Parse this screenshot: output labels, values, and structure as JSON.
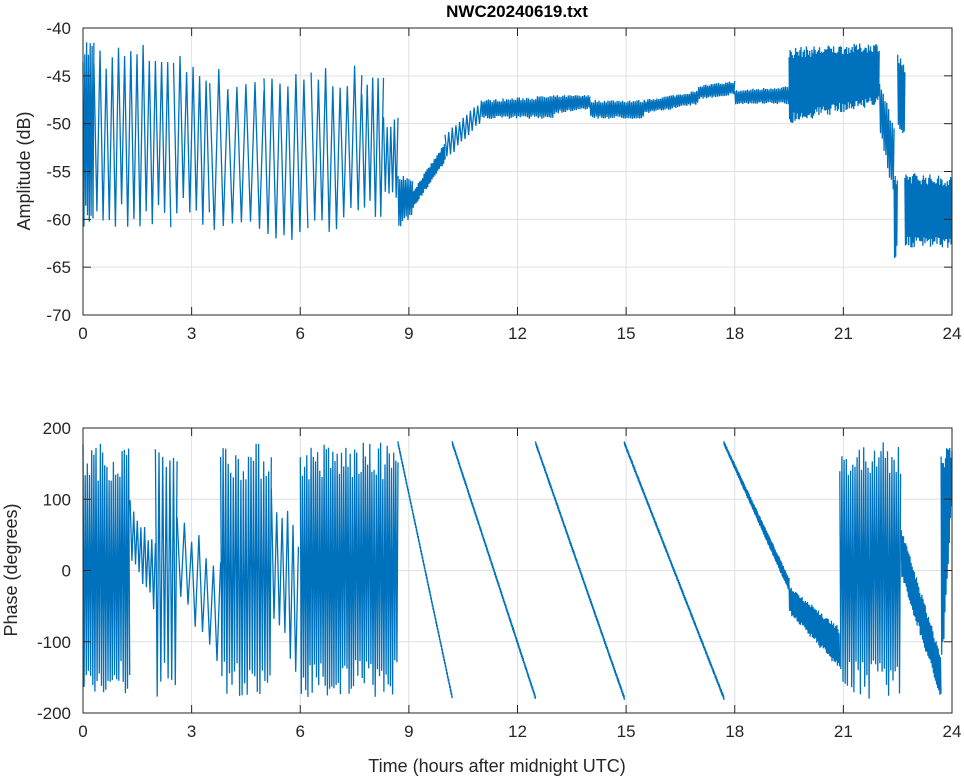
{
  "chart_data": [
    {
      "type": "line",
      "title": "NWC20240619.txt",
      "xlabel": "",
      "ylabel": "Amplitude (dB)",
      "xlim": [
        0,
        24
      ],
      "ylim": [
        -70,
        -40
      ],
      "xticks": [
        "0",
        "3",
        "6",
        "9",
        "12",
        "15",
        "18",
        "21",
        "24"
      ],
      "yticks": [
        "-40",
        "-45",
        "-50",
        "-55",
        "-60",
        "-65",
        "-70"
      ],
      "grid": true,
      "color": "#0072BD",
      "segments_note": "envelope segments [t_start_h, t_end_h, low_start, high_start, low_end, high_end, oscillation_period_h]",
      "segments": [
        [
          0,
          0.3,
          -61,
          -40.5,
          -61,
          -41,
          0.05
        ],
        [
          0.3,
          2.5,
          -61,
          -41.5,
          -61,
          -41.5,
          0.17
        ],
        [
          2.5,
          3.5,
          -60,
          -42.5,
          -61,
          -43,
          0.18
        ],
        [
          3.5,
          5.0,
          -62,
          -44,
          -62,
          -44.5,
          0.25
        ],
        [
          5.0,
          6.3,
          -63,
          -45,
          -63,
          -44.5,
          0.22
        ],
        [
          6.3,
          7.7,
          -62,
          -43.5,
          -61,
          -44,
          0.2
        ],
        [
          7.7,
          8.3,
          -60,
          -45,
          -60,
          -45,
          0.15
        ],
        [
          8.3,
          8.7,
          -58,
          -49,
          -59,
          -49,
          0.1
        ],
        [
          8.7,
          9.1,
          -61,
          -55,
          -60,
          -56,
          0.05
        ],
        [
          9.1,
          10.0,
          -59,
          -57,
          -54,
          -52,
          0.04
        ],
        [
          10.0,
          11.0,
          -54,
          -51,
          -50,
          -47.5,
          0.1
        ],
        [
          11.0,
          13.0,
          -49.5,
          -47.5,
          -49.5,
          -47,
          0.05
        ],
        [
          13.0,
          14.0,
          -49,
          -47,
          -48.5,
          -47,
          0.05
        ],
        [
          14.0,
          15.5,
          -49.5,
          -47.5,
          -49.5,
          -47.5,
          0.05
        ],
        [
          15.5,
          17.0,
          -49,
          -47.5,
          -48,
          -46.5,
          0.05
        ],
        [
          17.0,
          18.0,
          -47.5,
          -46,
          -47,
          -45.5,
          0.05
        ],
        [
          18.0,
          19.5,
          -48,
          -46.5,
          -48,
          -46,
          0.05
        ],
        [
          19.5,
          22.0,
          -50,
          -42,
          -48,
          -41.5,
          0.03
        ],
        [
          22.0,
          22.4,
          -51,
          -45,
          -58,
          -50,
          0.05
        ],
        [
          22.4,
          22.5,
          -65,
          -55,
          -63,
          -56,
          0.03
        ],
        [
          22.5,
          22.7,
          -50,
          -42.5,
          -52,
          -44,
          0.04
        ],
        [
          22.7,
          24.0,
          -63,
          -55,
          -63,
          -55.5,
          0.03
        ]
      ]
    },
    {
      "type": "line",
      "title": "",
      "xlabel": "Time (hours after midnight UTC)",
      "ylabel": "Phase (degrees)",
      "xlim": [
        0,
        24
      ],
      "ylim": [
        -200,
        200
      ],
      "xticks": [
        "0",
        "3",
        "6",
        "9",
        "12",
        "15",
        "18",
        "21",
        "24"
      ],
      "yticks": [
        "200",
        "100",
        "0",
        "-100",
        "-200"
      ],
      "grid": true,
      "color": "#0072BD",
      "segments_note": "envelope segments [t_start_h, t_end_h, low_start, high_start, low_end, high_end, oscillation_period_h]",
      "segments": [
        [
          0,
          1.3,
          -180,
          180,
          -180,
          180,
          0.06
        ],
        [
          1.3,
          2.0,
          10,
          100,
          -60,
          40,
          0.1
        ],
        [
          2.0,
          2.6,
          -180,
          180,
          -180,
          180,
          0.1
        ],
        [
          2.6,
          3.8,
          -40,
          80,
          -150,
          20,
          0.2
        ],
        [
          3.8,
          5.2,
          -180,
          180,
          -180,
          180,
          0.07
        ],
        [
          5.2,
          6.0,
          -80,
          120,
          -160,
          60,
          0.15
        ],
        [
          6.0,
          8.7,
          -180,
          180,
          -180,
          180,
          0.06
        ],
        [
          8.7,
          10.2,
          176,
          182,
          -182,
          -176,
          0.02
        ],
        [
          10.2,
          12.5,
          176,
          182,
          -182,
          -176,
          0.02
        ],
        [
          12.5,
          14.95,
          176,
          182,
          -182,
          -176,
          0.02
        ],
        [
          14.95,
          17.7,
          176,
          182,
          -182,
          -176,
          0.02
        ],
        [
          17.7,
          19.5,
          176,
          182,
          -30,
          -10,
          0.02
        ],
        [
          19.5,
          20.9,
          -60,
          -20,
          -140,
          -80,
          0.03
        ],
        [
          20.9,
          22.6,
          -180,
          180,
          -180,
          180,
          0.06
        ],
        [
          22.6,
          23.7,
          -10,
          60,
          -180,
          -120,
          0.03
        ],
        [
          23.7,
          24.0,
          -180,
          180,
          100,
          170,
          0.03
        ]
      ]
    }
  ]
}
